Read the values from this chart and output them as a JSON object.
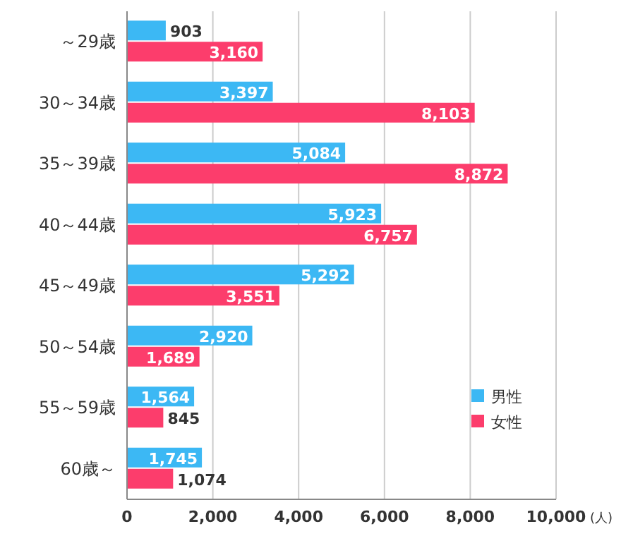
{
  "chart_data": {
    "type": "bar",
    "orientation": "horizontal",
    "categories": [
      "～29歳",
      "30～34歳",
      "35～39歳",
      "40～44歳",
      "45～49歳",
      "50～54歳",
      "55～59歳",
      "60歳～"
    ],
    "series": [
      {
        "name": "男性",
        "color": "#3cb8f4",
        "values": [
          903,
          3397,
          5084,
          5923,
          5292,
          2920,
          1564,
          1745
        ],
        "value_labels": [
          "903",
          "3,397",
          "5,084",
          "5,923",
          "5,292",
          "2,920",
          "1,564",
          "1,745"
        ]
      },
      {
        "name": "女性",
        "color": "#fc3d6c",
        "values": [
          3160,
          8103,
          8872,
          6757,
          3551,
          1689,
          845,
          1074
        ],
        "value_labels": [
          "3,160",
          "8,103",
          "8,872",
          "6,757",
          "3,551",
          "1,689",
          "845",
          "1,074"
        ]
      }
    ],
    "xlim": [
      0,
      10000
    ],
    "xticks": [
      0,
      {
        "value": 2000,
        "label": "2,000"
      },
      {
        "value": 4000,
        "label": "4,000"
      },
      {
        "value": 6000,
        "label": "6,000"
      },
      {
        "value": 8000,
        "label": "8,000"
      },
      {
        "value": 10000,
        "label": "10,000"
      }
    ],
    "xlabel": "(人)",
    "grid": "x",
    "legend": "bottom right"
  }
}
